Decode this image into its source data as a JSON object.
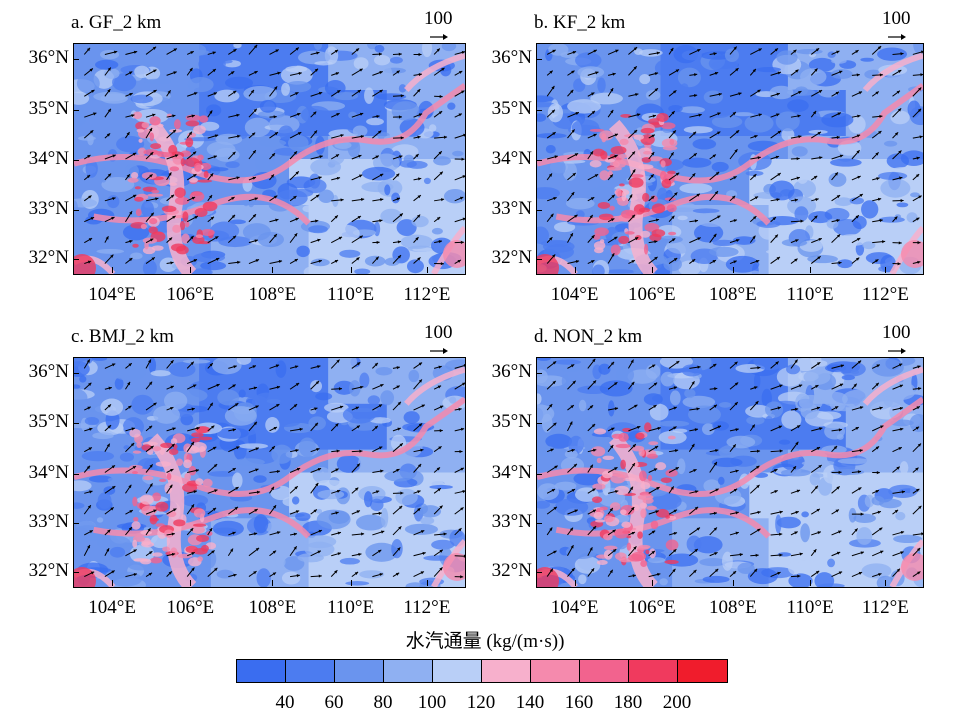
{
  "panels": [
    {
      "title": "a. GF_2 km"
    },
    {
      "title": "b. KF_2 km"
    },
    {
      "title": "c. BMJ_2 km"
    },
    {
      "title": "d. NON_2 km"
    }
  ],
  "reference_vector": {
    "label": "100"
  },
  "y_ticks": [
    "36°N",
    "35°N",
    "34°N",
    "33°N",
    "32°N"
  ],
  "x_ticks": [
    "104°E",
    "106°E",
    "108°E",
    "110°E",
    "112°E"
  ],
  "colorbar": {
    "title": "水汽通量 (kg/(m·s))",
    "labels": [
      "40",
      "60",
      "80",
      "100",
      "120",
      "140",
      "160",
      "180",
      "200"
    ],
    "colors": [
      "#3a6df0",
      "#4c7cf0",
      "#6a94ee",
      "#8fb0f2",
      "#b9cff7",
      "#f7b0cc",
      "#f58aad",
      "#f2638e",
      "#f03a5e",
      "#f01c2c"
    ]
  }
}
